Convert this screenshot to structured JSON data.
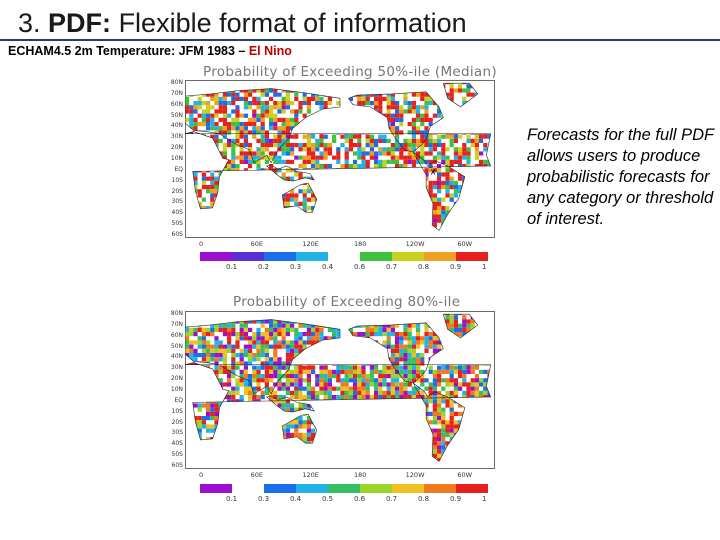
{
  "slide": {
    "number": "3.",
    "title_bold": "PDF:",
    "title_rest": "Flexible format of information"
  },
  "subtitle": {
    "main": "ECHAM4.5 2m Temperature: JFM 1983 – ",
    "highlight": "El Nino",
    "highlight_color": "#c00000"
  },
  "map1": {
    "title": "Probability of Exceeding 50%-ile (Median)",
    "lat_labels": [
      "80N",
      "70N",
      "60N",
      "50N",
      "40N",
      "30N",
      "20N",
      "10N",
      "EQ",
      "10S",
      "20S",
      "30S",
      "40S",
      "50S",
      "60S"
    ],
    "lon_labels": [
      "0",
      "60E",
      "120E",
      "180",
      "120W",
      "60W"
    ],
    "marker": "x",
    "colorbar": {
      "labels": [
        "0.1",
        "0.2",
        "0.3",
        "0.4",
        "0.6",
        "0.7",
        "0.8",
        "0.9",
        "1"
      ],
      "colors": [
        "#9c0fcf",
        "#5a2fd8",
        "#1a6fe8",
        "#22b3e6",
        "#ffffff",
        "#3cc23c",
        "#c8d21e",
        "#f0a020",
        "#e8201e"
      ]
    }
  },
  "map2": {
    "title": "Probability of Exceeding 80%-ile",
    "lat_labels": [
      "80N",
      "70N",
      "60N",
      "50N",
      "40N",
      "30N",
      "20N",
      "10N",
      "EQ",
      "10S",
      "20S",
      "30S",
      "40S",
      "50S",
      "60S"
    ],
    "lon_labels": [
      "0",
      "60E",
      "120E",
      "180",
      "120W",
      "60W"
    ],
    "colorbar": {
      "labels": [
        "0.1",
        "0.3",
        "0.4",
        "0.5",
        "0.6",
        "0.7",
        "0.8",
        "0.9",
        "1"
      ],
      "colors": [
        "#9c0fcf",
        "#ffffff",
        "#1a6fe8",
        "#22b3e6",
        "#34c060",
        "#9ad428",
        "#f0c020",
        "#f07a1e",
        "#e8201e"
      ]
    }
  },
  "side_text": "Forecasts for the full PDF allows users to produce probabilistic forecasts for any category or threshold of interest."
}
